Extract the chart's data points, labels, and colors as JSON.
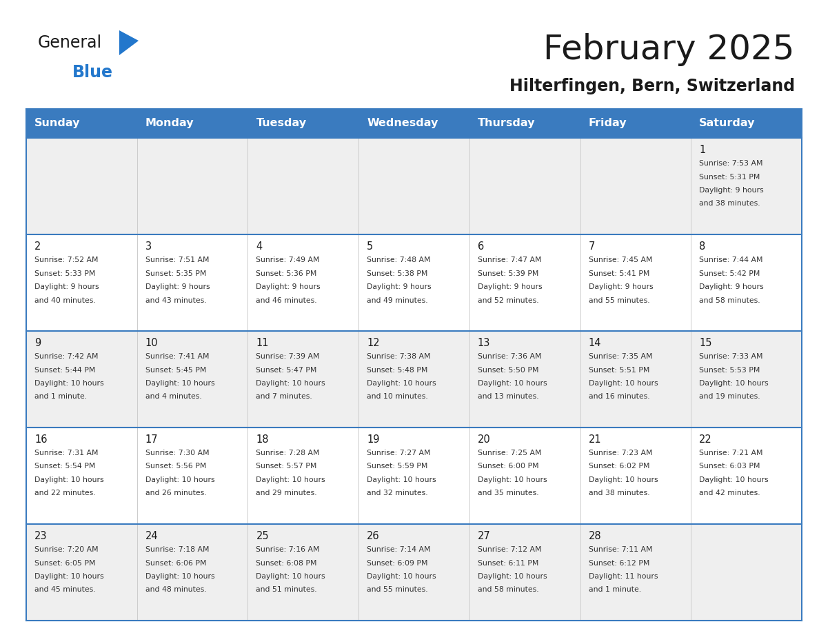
{
  "title": "February 2025",
  "subtitle": "Hilterfingen, Bern, Switzerland",
  "header_color": "#3a7bbf",
  "header_text_color": "#ffffff",
  "day_names": [
    "Sunday",
    "Monday",
    "Tuesday",
    "Wednesday",
    "Thursday",
    "Friday",
    "Saturday"
  ],
  "cell_bg_light": "#efefef",
  "cell_bg_white": "#ffffff",
  "line_color": "#3a7bbf",
  "date_color": "#1a1a1a",
  "info_color": "#333333",
  "logo_general_color": "#1a1a1a",
  "logo_blue_color": "#2277cc",
  "title_color": "#1a1a1a",
  "subtitle_color": "#1a1a1a",
  "days": [
    {
      "day": 1,
      "col": 6,
      "row": 0,
      "sunrise": "7:53 AM",
      "sunset": "5:31 PM",
      "daylight_h": "9 hours",
      "daylight_m": "38 minutes."
    },
    {
      "day": 2,
      "col": 0,
      "row": 1,
      "sunrise": "7:52 AM",
      "sunset": "5:33 PM",
      "daylight_h": "9 hours",
      "daylight_m": "40 minutes."
    },
    {
      "day": 3,
      "col": 1,
      "row": 1,
      "sunrise": "7:51 AM",
      "sunset": "5:35 PM",
      "daylight_h": "9 hours",
      "daylight_m": "43 minutes."
    },
    {
      "day": 4,
      "col": 2,
      "row": 1,
      "sunrise": "7:49 AM",
      "sunset": "5:36 PM",
      "daylight_h": "9 hours",
      "daylight_m": "46 minutes."
    },
    {
      "day": 5,
      "col": 3,
      "row": 1,
      "sunrise": "7:48 AM",
      "sunset": "5:38 PM",
      "daylight_h": "9 hours",
      "daylight_m": "49 minutes."
    },
    {
      "day": 6,
      "col": 4,
      "row": 1,
      "sunrise": "7:47 AM",
      "sunset": "5:39 PM",
      "daylight_h": "9 hours",
      "daylight_m": "52 minutes."
    },
    {
      "day": 7,
      "col": 5,
      "row": 1,
      "sunrise": "7:45 AM",
      "sunset": "5:41 PM",
      "daylight_h": "9 hours",
      "daylight_m": "55 minutes."
    },
    {
      "day": 8,
      "col": 6,
      "row": 1,
      "sunrise": "7:44 AM",
      "sunset": "5:42 PM",
      "daylight_h": "9 hours",
      "daylight_m": "58 minutes."
    },
    {
      "day": 9,
      "col": 0,
      "row": 2,
      "sunrise": "7:42 AM",
      "sunset": "5:44 PM",
      "daylight_h": "10 hours",
      "daylight_m": "1 minute."
    },
    {
      "day": 10,
      "col": 1,
      "row": 2,
      "sunrise": "7:41 AM",
      "sunset": "5:45 PM",
      "daylight_h": "10 hours",
      "daylight_m": "4 minutes."
    },
    {
      "day": 11,
      "col": 2,
      "row": 2,
      "sunrise": "7:39 AM",
      "sunset": "5:47 PM",
      "daylight_h": "10 hours",
      "daylight_m": "7 minutes."
    },
    {
      "day": 12,
      "col": 3,
      "row": 2,
      "sunrise": "7:38 AM",
      "sunset": "5:48 PM",
      "daylight_h": "10 hours",
      "daylight_m": "10 minutes."
    },
    {
      "day": 13,
      "col": 4,
      "row": 2,
      "sunrise": "7:36 AM",
      "sunset": "5:50 PM",
      "daylight_h": "10 hours",
      "daylight_m": "13 minutes."
    },
    {
      "day": 14,
      "col": 5,
      "row": 2,
      "sunrise": "7:35 AM",
      "sunset": "5:51 PM",
      "daylight_h": "10 hours",
      "daylight_m": "16 minutes."
    },
    {
      "day": 15,
      "col": 6,
      "row": 2,
      "sunrise": "7:33 AM",
      "sunset": "5:53 PM",
      "daylight_h": "10 hours",
      "daylight_m": "19 minutes."
    },
    {
      "day": 16,
      "col": 0,
      "row": 3,
      "sunrise": "7:31 AM",
      "sunset": "5:54 PM",
      "daylight_h": "10 hours",
      "daylight_m": "22 minutes."
    },
    {
      "day": 17,
      "col": 1,
      "row": 3,
      "sunrise": "7:30 AM",
      "sunset": "5:56 PM",
      "daylight_h": "10 hours",
      "daylight_m": "26 minutes."
    },
    {
      "day": 18,
      "col": 2,
      "row": 3,
      "sunrise": "7:28 AM",
      "sunset": "5:57 PM",
      "daylight_h": "10 hours",
      "daylight_m": "29 minutes."
    },
    {
      "day": 19,
      "col": 3,
      "row": 3,
      "sunrise": "7:27 AM",
      "sunset": "5:59 PM",
      "daylight_h": "10 hours",
      "daylight_m": "32 minutes."
    },
    {
      "day": 20,
      "col": 4,
      "row": 3,
      "sunrise": "7:25 AM",
      "sunset": "6:00 PM",
      "daylight_h": "10 hours",
      "daylight_m": "35 minutes."
    },
    {
      "day": 21,
      "col": 5,
      "row": 3,
      "sunrise": "7:23 AM",
      "sunset": "6:02 PM",
      "daylight_h": "10 hours",
      "daylight_m": "38 minutes."
    },
    {
      "day": 22,
      "col": 6,
      "row": 3,
      "sunrise": "7:21 AM",
      "sunset": "6:03 PM",
      "daylight_h": "10 hours",
      "daylight_m": "42 minutes."
    },
    {
      "day": 23,
      "col": 0,
      "row": 4,
      "sunrise": "7:20 AM",
      "sunset": "6:05 PM",
      "daylight_h": "10 hours",
      "daylight_m": "45 minutes."
    },
    {
      "day": 24,
      "col": 1,
      "row": 4,
      "sunrise": "7:18 AM",
      "sunset": "6:06 PM",
      "daylight_h": "10 hours",
      "daylight_m": "48 minutes."
    },
    {
      "day": 25,
      "col": 2,
      "row": 4,
      "sunrise": "7:16 AM",
      "sunset": "6:08 PM",
      "daylight_h": "10 hours",
      "daylight_m": "51 minutes."
    },
    {
      "day": 26,
      "col": 3,
      "row": 4,
      "sunrise": "7:14 AM",
      "sunset": "6:09 PM",
      "daylight_h": "10 hours",
      "daylight_m": "55 minutes."
    },
    {
      "day": 27,
      "col": 4,
      "row": 4,
      "sunrise": "7:12 AM",
      "sunset": "6:11 PM",
      "daylight_h": "10 hours",
      "daylight_m": "58 minutes."
    },
    {
      "day": 28,
      "col": 5,
      "row": 4,
      "sunrise": "7:11 AM",
      "sunset": "6:12 PM",
      "daylight_h": "11 hours",
      "daylight_m": "1 minute."
    }
  ]
}
